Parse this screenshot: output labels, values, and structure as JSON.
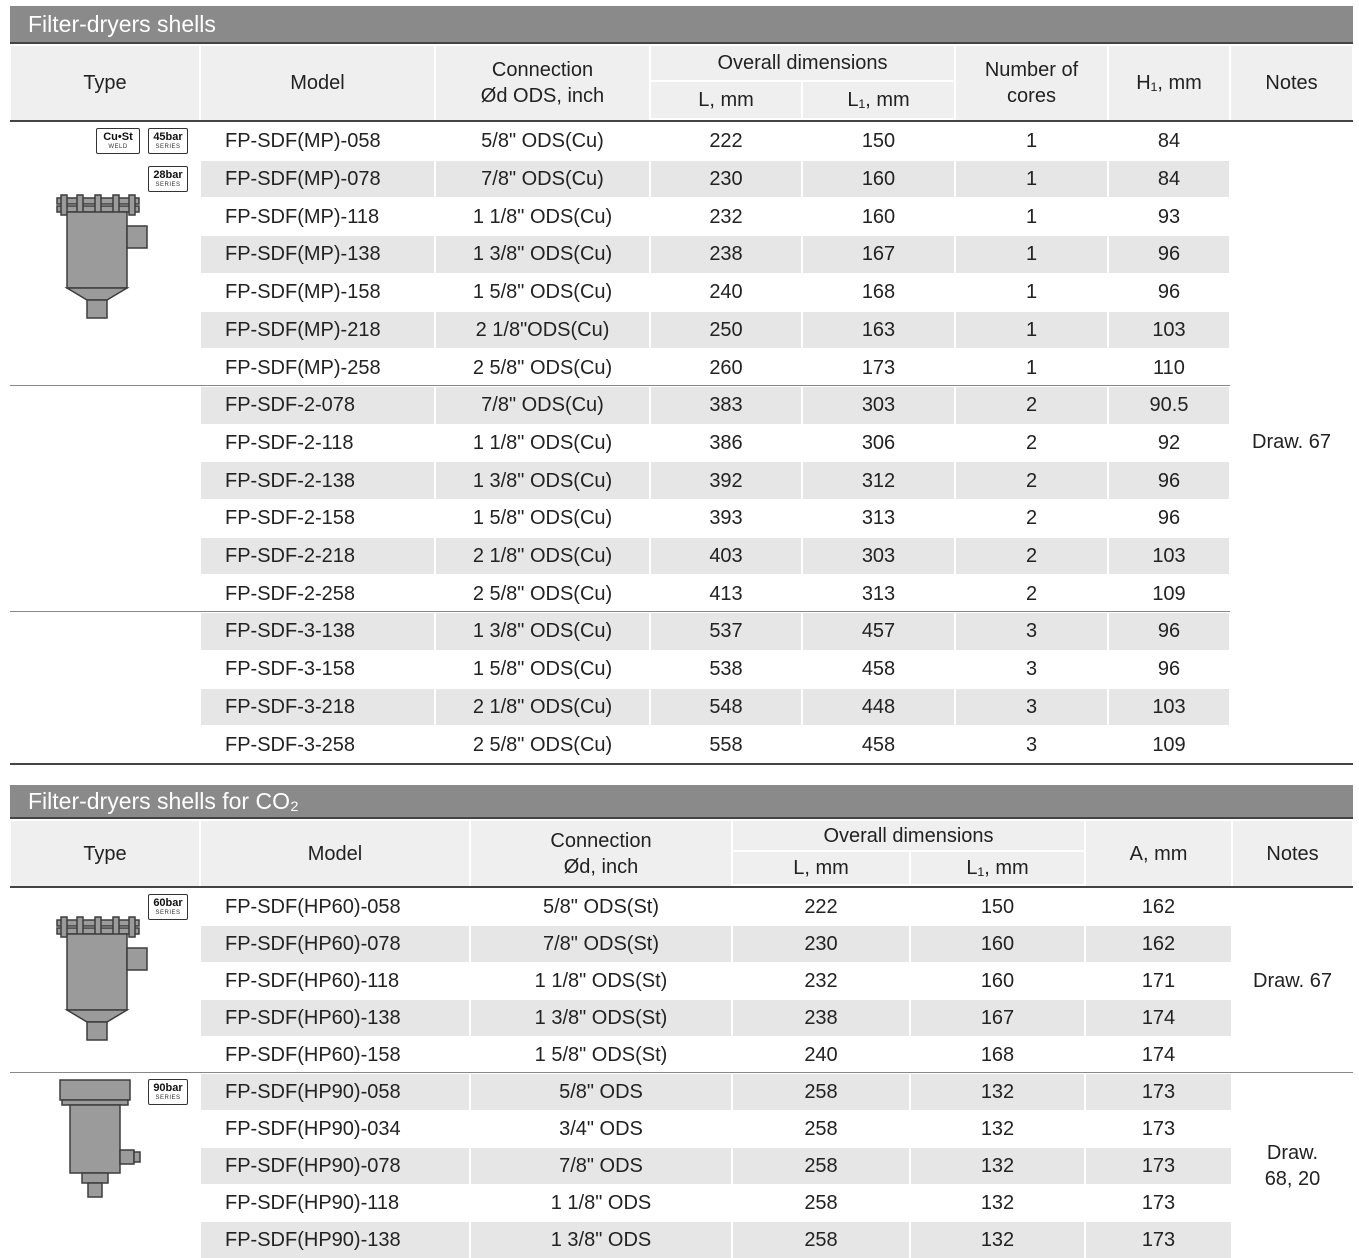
{
  "sections": [
    {
      "title": "Filter-dryers shells",
      "header": [
        {
          "text": "Type"
        },
        {
          "text": "Model"
        },
        {
          "text": "Connection\nØd  ODS, inch"
        },
        {
          "text": "Overall dimensions",
          "sub": [
            "L, mm",
            "L₁, mm"
          ]
        },
        {
          "text": "Number of\ncores"
        },
        {
          "text": "H₁, mm"
        },
        {
          "text": "Notes"
        }
      ],
      "notes": "Draw. 67",
      "groups": [
        {
          "badges": [
            {
              "top": "Cu•St",
              "bottom": "WELD"
            },
            {
              "top": "45bar",
              "bottom": "SERIES"
            },
            {
              "top": "28bar",
              "bottom": "SERIES"
            }
          ],
          "rows": [
            [
              "FP-SDF(MP)-058",
              "5/8\" ODS(Cu)",
              222,
              150,
              1,
              84
            ],
            [
              "FP-SDF(MP)-078",
              "7/8\" ODS(Cu)",
              230,
              160,
              1,
              84
            ],
            [
              "FP-SDF(MP)-118",
              "1 1/8\" ODS(Cu)",
              232,
              160,
              1,
              93
            ],
            [
              "FP-SDF(MP)-138",
              "1 3/8\" ODS(Cu)",
              238,
              167,
              1,
              96
            ],
            [
              "FP-SDF(MP)-158",
              "1 5/8\" ODS(Cu)",
              240,
              168,
              1,
              96
            ],
            [
              "FP-SDF(MP)-218",
              "2 1/8\"ODS(Cu)",
              250,
              163,
              1,
              103
            ],
            [
              "FP-SDF(MP)-258",
              "2 5/8\" ODS(Cu)",
              260,
              173,
              1,
              110
            ]
          ]
        },
        {
          "rows": [
            [
              "FP-SDF-2-078",
              "7/8\" ODS(Cu)",
              383,
              303,
              2,
              90.5
            ],
            [
              "FP-SDF-2-118",
              "1 1/8\" ODS(Cu)",
              386,
              306,
              2,
              92
            ],
            [
              "FP-SDF-2-138",
              "1 3/8\" ODS(Cu)",
              392,
              312,
              2,
              96
            ],
            [
              "FP-SDF-2-158",
              "1 5/8\" ODS(Cu)",
              393,
              313,
              2,
              96
            ],
            [
              "FP-SDF-2-218",
              "2 1/8\" ODS(Cu)",
              403,
              303,
              2,
              103
            ],
            [
              "FP-SDF-2-258",
              "2 5/8\" ODS(Cu)",
              413,
              313,
              2,
              109
            ]
          ]
        },
        {
          "rows": [
            [
              "FP-SDF-3-138",
              "1 3/8\" ODS(Cu)",
              537,
              457,
              3,
              96
            ],
            [
              "FP-SDF-3-158",
              "1 5/8\" ODS(Cu)",
              538,
              458,
              3,
              96
            ],
            [
              "FP-SDF-3-218",
              "2 1/8\" ODS(Cu)",
              548,
              448,
              3,
              103
            ],
            [
              "FP-SDF-3-258",
              "2 5/8\" ODS(Cu)",
              558,
              458,
              3,
              109
            ]
          ]
        }
      ]
    },
    {
      "title": "Filter-dryers shells for CO₂",
      "header": [
        {
          "text": "Type"
        },
        {
          "text": "Model"
        },
        {
          "text": "Connection\nØd, inch"
        },
        {
          "text": "Overall dimensions",
          "sub": [
            "L, mm",
            "L₁, mm"
          ]
        },
        {
          "text": "A, mm"
        },
        {
          "text": "Notes"
        }
      ],
      "groups": [
        {
          "badges": [
            {
              "top": "60bar",
              "bottom": "SERIES"
            }
          ],
          "notes": "Draw. 67",
          "rows": [
            [
              "FP-SDF(HP60)-058",
              "5/8\" ODS(St)",
              222,
              150,
              162
            ],
            [
              "FP-SDF(HP60)-078",
              "7/8\" ODS(St)",
              230,
              160,
              162
            ],
            [
              "FP-SDF(HP60)-118",
              "1 1/8\" ODS(St)",
              232,
              160,
              171
            ],
            [
              "FP-SDF(HP60)-138",
              "1 3/8\" ODS(St)",
              238,
              167,
              174
            ],
            [
              "FP-SDF(HP60)-158",
              "1 5/8\" ODS(St)",
              240,
              168,
              174
            ]
          ]
        },
        {
          "badges": [
            {
              "top": "90bar",
              "bottom": "SERIES"
            }
          ],
          "notes": "Draw.\n68, 20",
          "rows": [
            [
              "FP-SDF(HP90)-058",
              "5/8\" ODS",
              258,
              132,
              173
            ],
            [
              "FP-SDF(HP90)-034",
              "3/4\" ODS",
              258,
              132,
              173
            ],
            [
              "FP-SDF(HP90)-078",
              "7/8\" ODS",
              258,
              132,
              173
            ],
            [
              "FP-SDF(HP90)-118",
              "1 1/8\" ODS",
              258,
              132,
              173
            ],
            [
              "FP-SDF(HP90)-138",
              "1 3/8\" ODS",
              258,
              132,
              173
            ]
          ]
        }
      ]
    }
  ]
}
